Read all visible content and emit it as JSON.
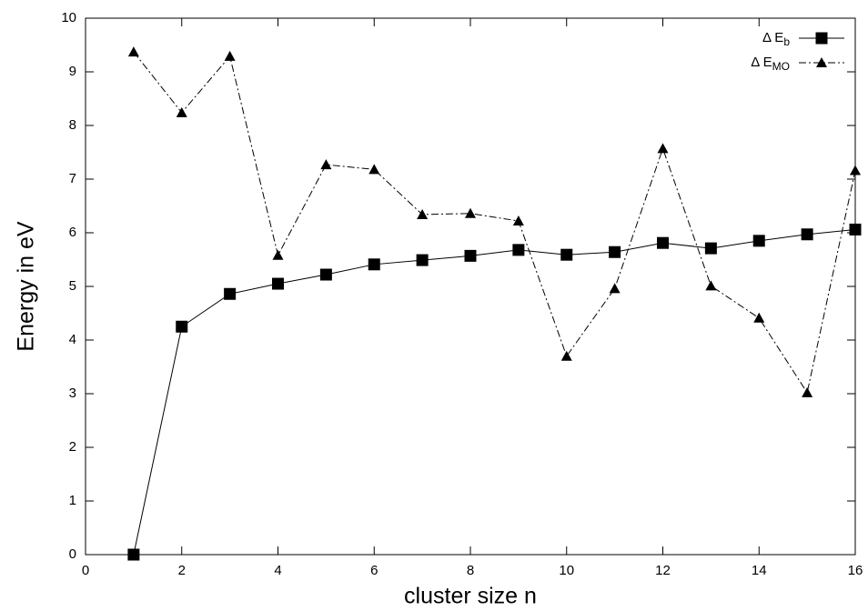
{
  "chart_data": {
    "type": "line",
    "x_label": "cluster size n",
    "y_label": "Energy in eV",
    "x": [
      1,
      2,
      3,
      4,
      5,
      6,
      7,
      8,
      9,
      10,
      11,
      12,
      13,
      14,
      15,
      16
    ],
    "series": [
      {
        "name": "Δ E",
        "subscript": "b",
        "color": "#000000",
        "marker": "square",
        "dash": "solid",
        "values": [
          0,
          4.25,
          4.86,
          5.05,
          5.22,
          5.41,
          5.49,
          5.57,
          5.68,
          5.59,
          5.64,
          5.81,
          5.71,
          5.85,
          5.97,
          6.06
        ]
      },
      {
        "name": "Δ E",
        "subscript": "MO",
        "color": "#000000",
        "marker": "triangle",
        "dash": "dashdot",
        "values": [
          9.37,
          8.24,
          9.29,
          5.58,
          7.27,
          7.18,
          6.34,
          6.36,
          6.22,
          3.7,
          4.96,
          7.57,
          5.01,
          4.41,
          3.02,
          7.16
        ]
      }
    ],
    "xlim": [
      0,
      16
    ],
    "xticks": [
      0,
      2,
      4,
      6,
      8,
      10,
      12,
      14,
      16
    ],
    "ylim": [
      0,
      10
    ],
    "yticks": [
      0,
      1,
      2,
      3,
      4,
      5,
      6,
      7,
      8,
      9,
      10
    ],
    "grid": false,
    "legend": "top-right"
  }
}
